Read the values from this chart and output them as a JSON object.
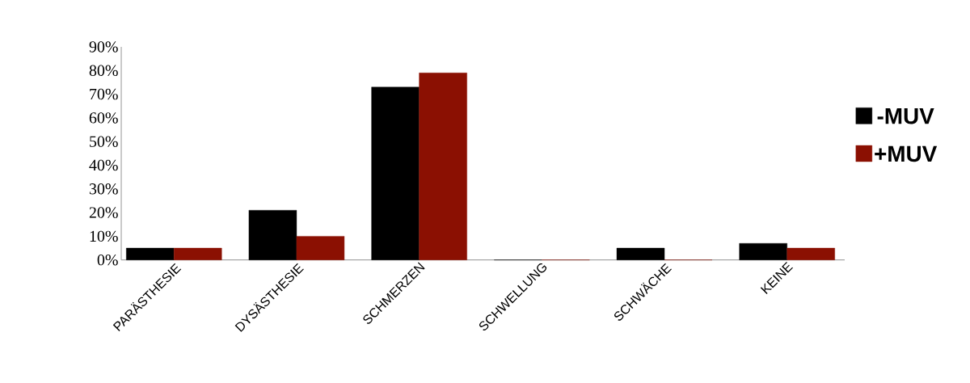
{
  "chart_data": {
    "type": "bar",
    "categories": [
      "PARÄSTHESIE",
      "DYSÄSTHESIE",
      "SCHMERZEN",
      "SCHWELLUNG",
      "SCHWÄCHE",
      "KEINE"
    ],
    "series": [
      {
        "name": "-MUV",
        "color": "#000000",
        "values": [
          5,
          21,
          73,
          0,
          5,
          7
        ]
      },
      {
        "name": "+MUV",
        "color": "#8b1002",
        "values": [
          5,
          10,
          79,
          0,
          0,
          5
        ]
      }
    ],
    "ylim": [
      0,
      90
    ],
    "yticks": [
      {
        "value": 0,
        "label": "0%"
      },
      {
        "value": 10,
        "label": "10%"
      },
      {
        "value": 20,
        "label": "20%"
      },
      {
        "value": 30,
        "label": "30%"
      },
      {
        "value": 40,
        "label": "40%"
      },
      {
        "value": 50,
        "label": "50%"
      },
      {
        "value": 60,
        "label": "60%"
      },
      {
        "value": 70,
        "label": "70%"
      },
      {
        "value": 80,
        "label": "80%"
      },
      {
        "value": 90,
        "label": "90%"
      }
    ],
    "grid": false,
    "legend": "right"
  }
}
